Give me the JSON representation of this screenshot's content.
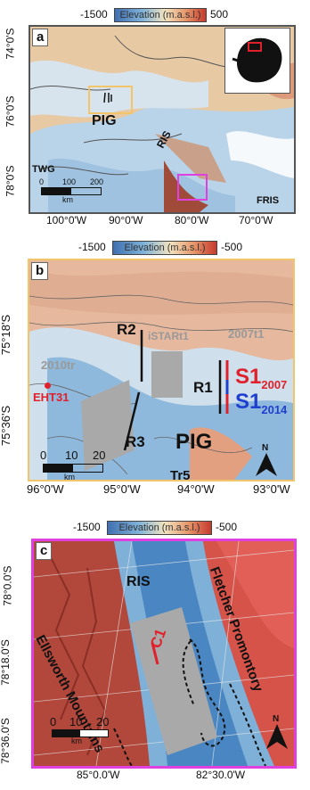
{
  "panel_a": {
    "letter": "a",
    "colorbar": {
      "min": "-1500",
      "max": "500",
      "label": "Elevation (m.a.s.l.)"
    },
    "labels": {
      "pig": "PIG",
      "ris": "RIS",
      "twg": "TWG",
      "fris": "FRIS"
    },
    "scalebar": {
      "ticks": [
        "0",
        "100",
        "200"
      ],
      "unit": "km"
    },
    "lat_ticks": [
      "74°0'S",
      "76°0'S",
      "78°0'S"
    ],
    "lon_ticks": [
      "100°0'W",
      "90°0'W",
      "80°0'W",
      "70°0'W"
    ],
    "inset_color": "#e0202a",
    "pig_box_color": "#f3c56a",
    "ris_box_color": "#e040e0"
  },
  "panel_b": {
    "letter": "b",
    "colorbar": {
      "min": "-1500",
      "max": "-500",
      "label": "Elevation (m.a.s.l.)"
    },
    "labels": {
      "r1": "R1",
      "r2": "R2",
      "r3": "R3",
      "tr_2010": "2010tr",
      "istar": "iSTARt1",
      "tr_2007": "2007t1",
      "eht31": "EHT31",
      "pig": "PIG",
      "tr5": "Tr5",
      "s1_2007": "S1",
      "s1_2007_sub": "2007",
      "s1_2014": "S1",
      "s1_2014_sub": "2014"
    },
    "scalebar": {
      "ticks": [
        "0",
        "10",
        "20"
      ],
      "unit": "km"
    },
    "north": "N",
    "lat_ticks": [
      "75°18'S",
      "75°36'S"
    ],
    "lon_ticks": [
      "96°0'W",
      "95°0'W",
      "94°0'W",
      "93°0'W"
    ],
    "border_color": "#f3c56a",
    "s1_2007_color": "#e0202a",
    "s1_2014_color": "#1f3fd0"
  },
  "panel_c": {
    "letter": "c",
    "colorbar": {
      "min": "-1500",
      "max": "-500",
      "label": "Elevation (m.a.s.l.)"
    },
    "labels": {
      "ris": "RIS",
      "c1": "C1",
      "ellsworth": "Ellsworth Mountains",
      "fletcher": "Fletcher Promontory"
    },
    "scalebar": {
      "ticks": [
        "0",
        "10",
        "20"
      ],
      "unit": "km"
    },
    "north": "N",
    "lat_ticks": [
      "78°0.0'S",
      "78°18.0'S",
      "78°36.0'S"
    ],
    "lon_ticks": [
      "85°0.0'W",
      "82°30.0'W"
    ],
    "border_color": "#e040e0",
    "c1_color": "#e0202a"
  }
}
